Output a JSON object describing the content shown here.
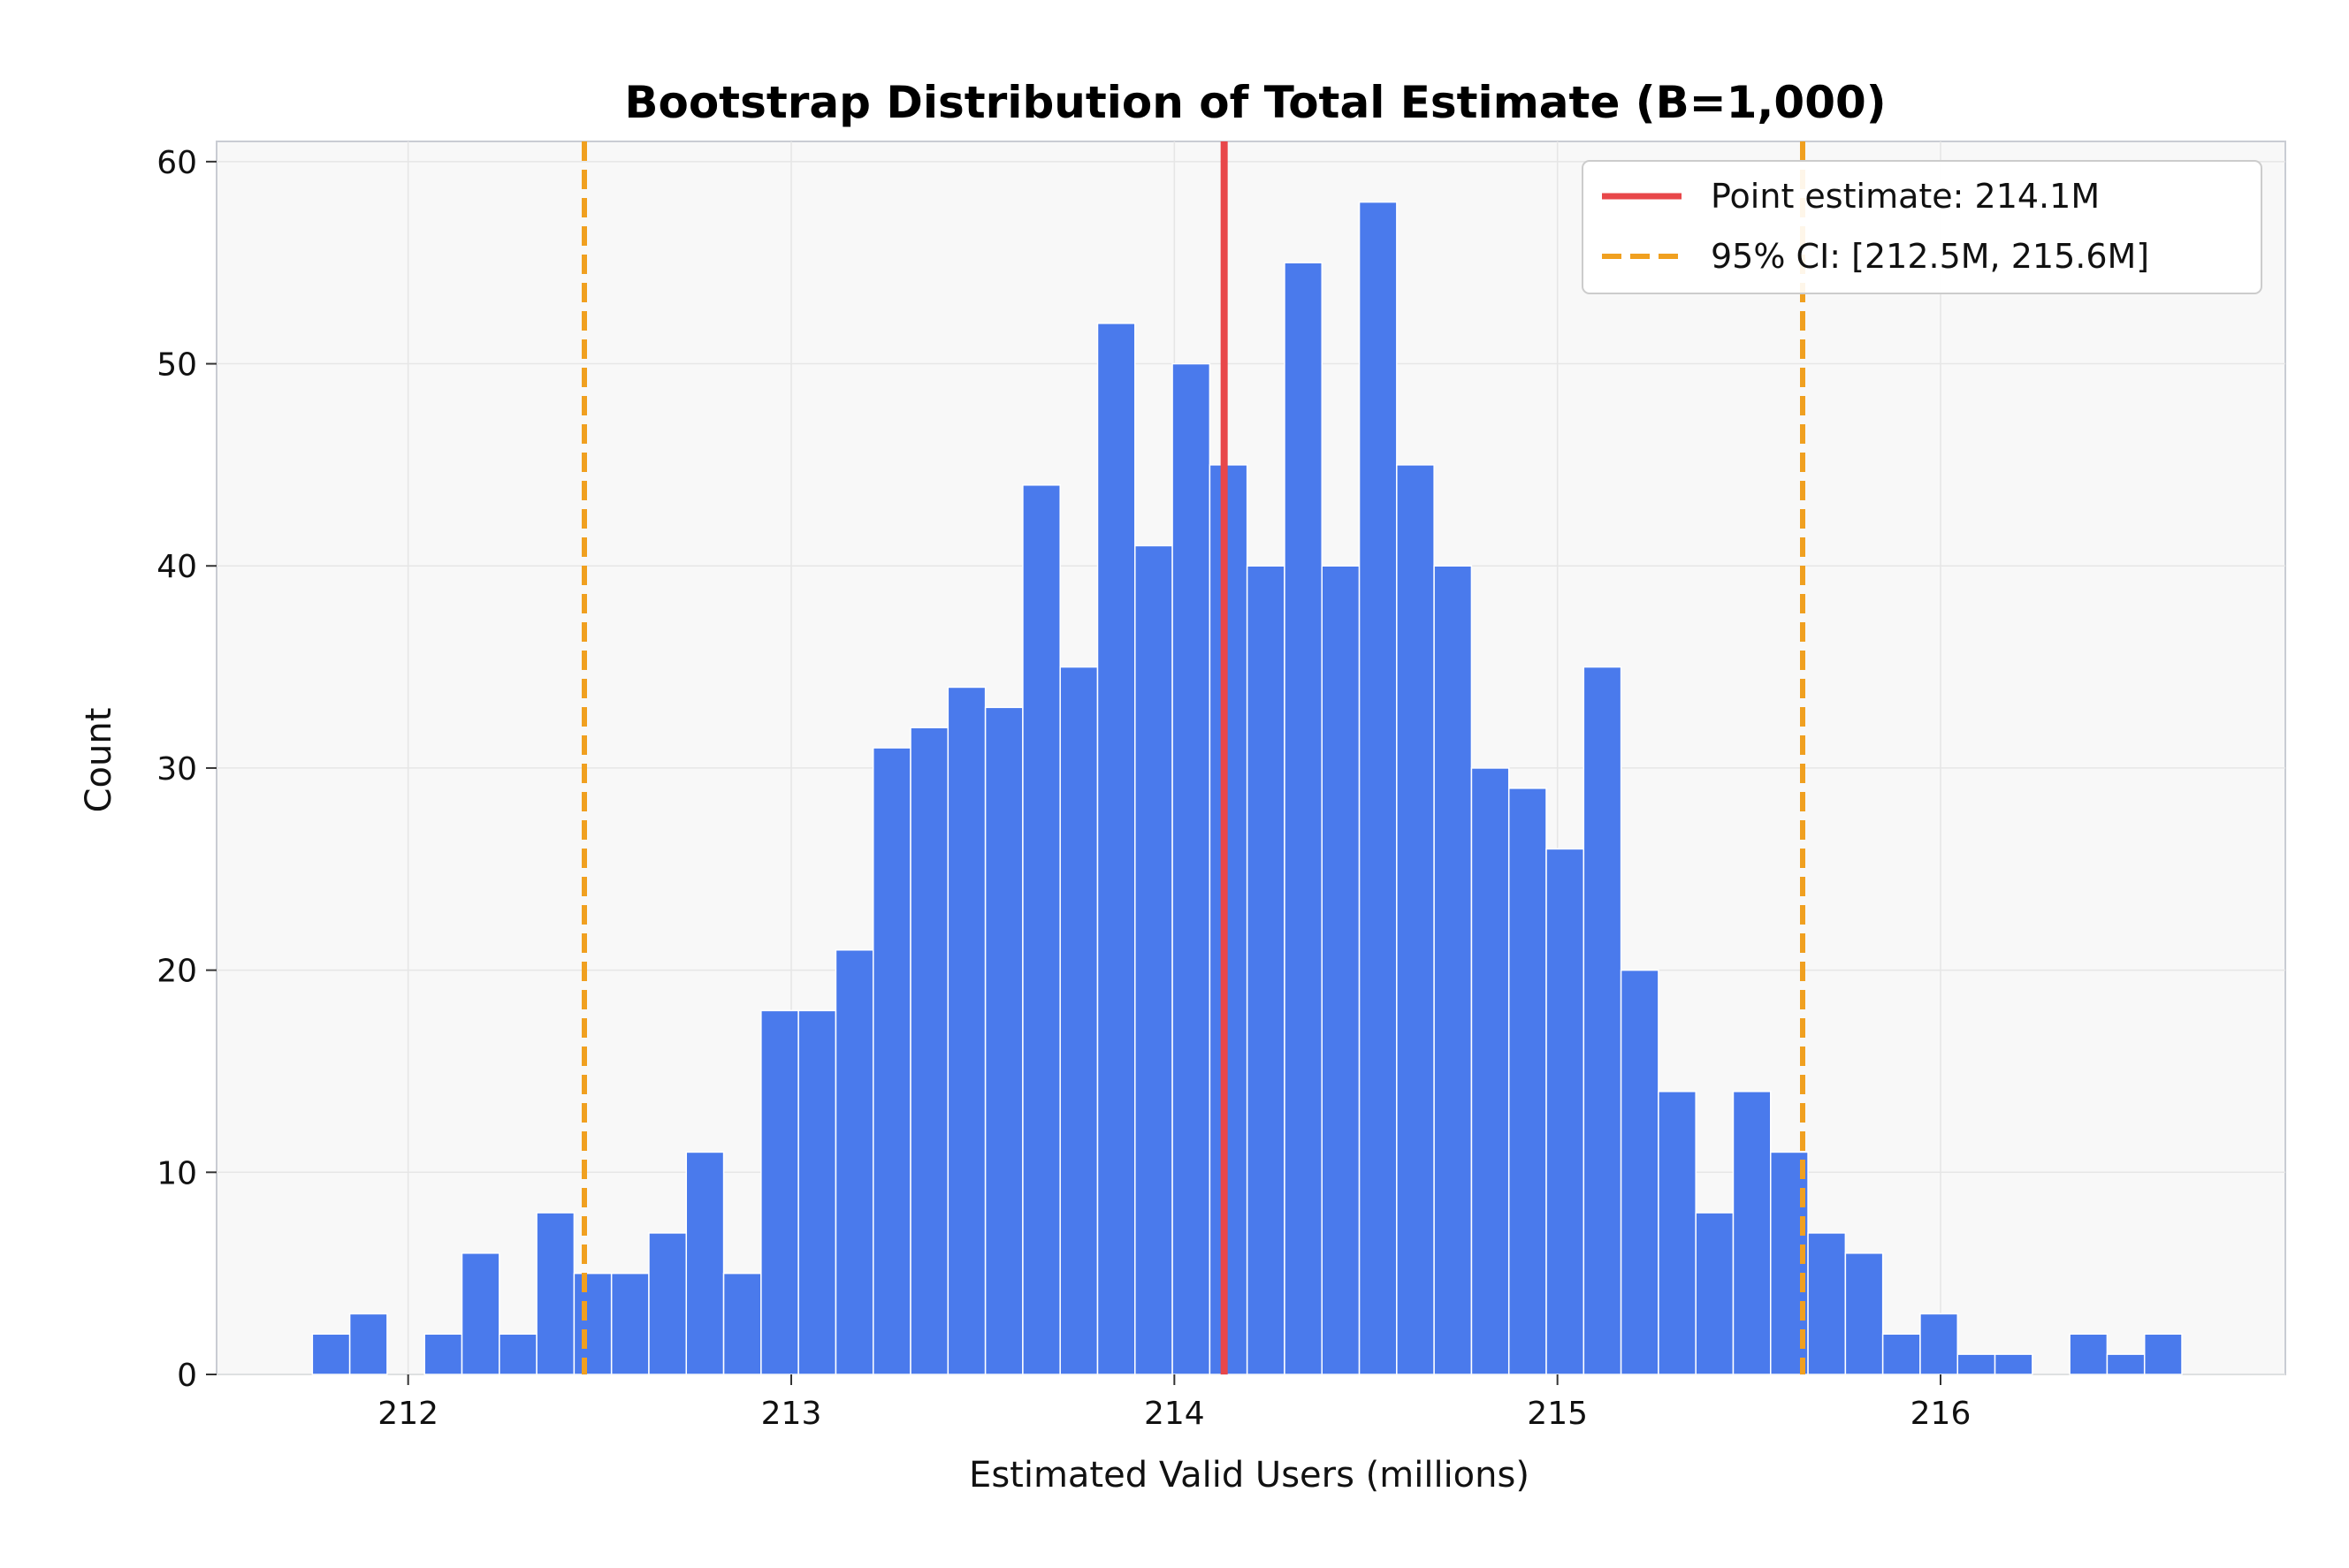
{
  "chart_data": {
    "type": "bar",
    "title": "Bootstrap Distribution of Total Estimate (B=1,000)",
    "xlabel": "Estimated Valid Users (millions)",
    "ylabel": "Count",
    "xlim": [
      211.5,
      216.9
    ],
    "ylim": [
      0,
      61
    ],
    "xticks": [
      212,
      213,
      214,
      215,
      216
    ],
    "yticks": [
      0,
      10,
      20,
      30,
      40,
      50,
      60
    ],
    "grid": true,
    "legend_position": "top-right",
    "bin_start": 211.75,
    "bin_width": 0.0976,
    "counts": [
      2,
      3,
      0,
      2,
      6,
      2,
      8,
      5,
      5,
      7,
      11,
      5,
      18,
      18,
      21,
      31,
      32,
      34,
      33,
      44,
      35,
      52,
      41,
      50,
      45,
      40,
      55,
      40,
      58,
      45,
      40,
      30,
      29,
      26,
      35,
      20,
      14,
      8,
      14,
      11,
      7,
      6,
      2,
      3,
      1,
      1,
      0,
      2,
      1,
      2
    ],
    "point_estimate": 214.13,
    "ci": [
      212.46,
      215.64
    ],
    "legend": [
      "Point estimate: 214.1M",
      "95% CI: [212.5M, 215.6M]"
    ],
    "colors": {
      "bars": "#4a7aec",
      "point_estimate": "#e8474a",
      "ci": "#f0a020",
      "plot_bg": "#f8f8f8",
      "grid": "#e6e6e6"
    }
  }
}
